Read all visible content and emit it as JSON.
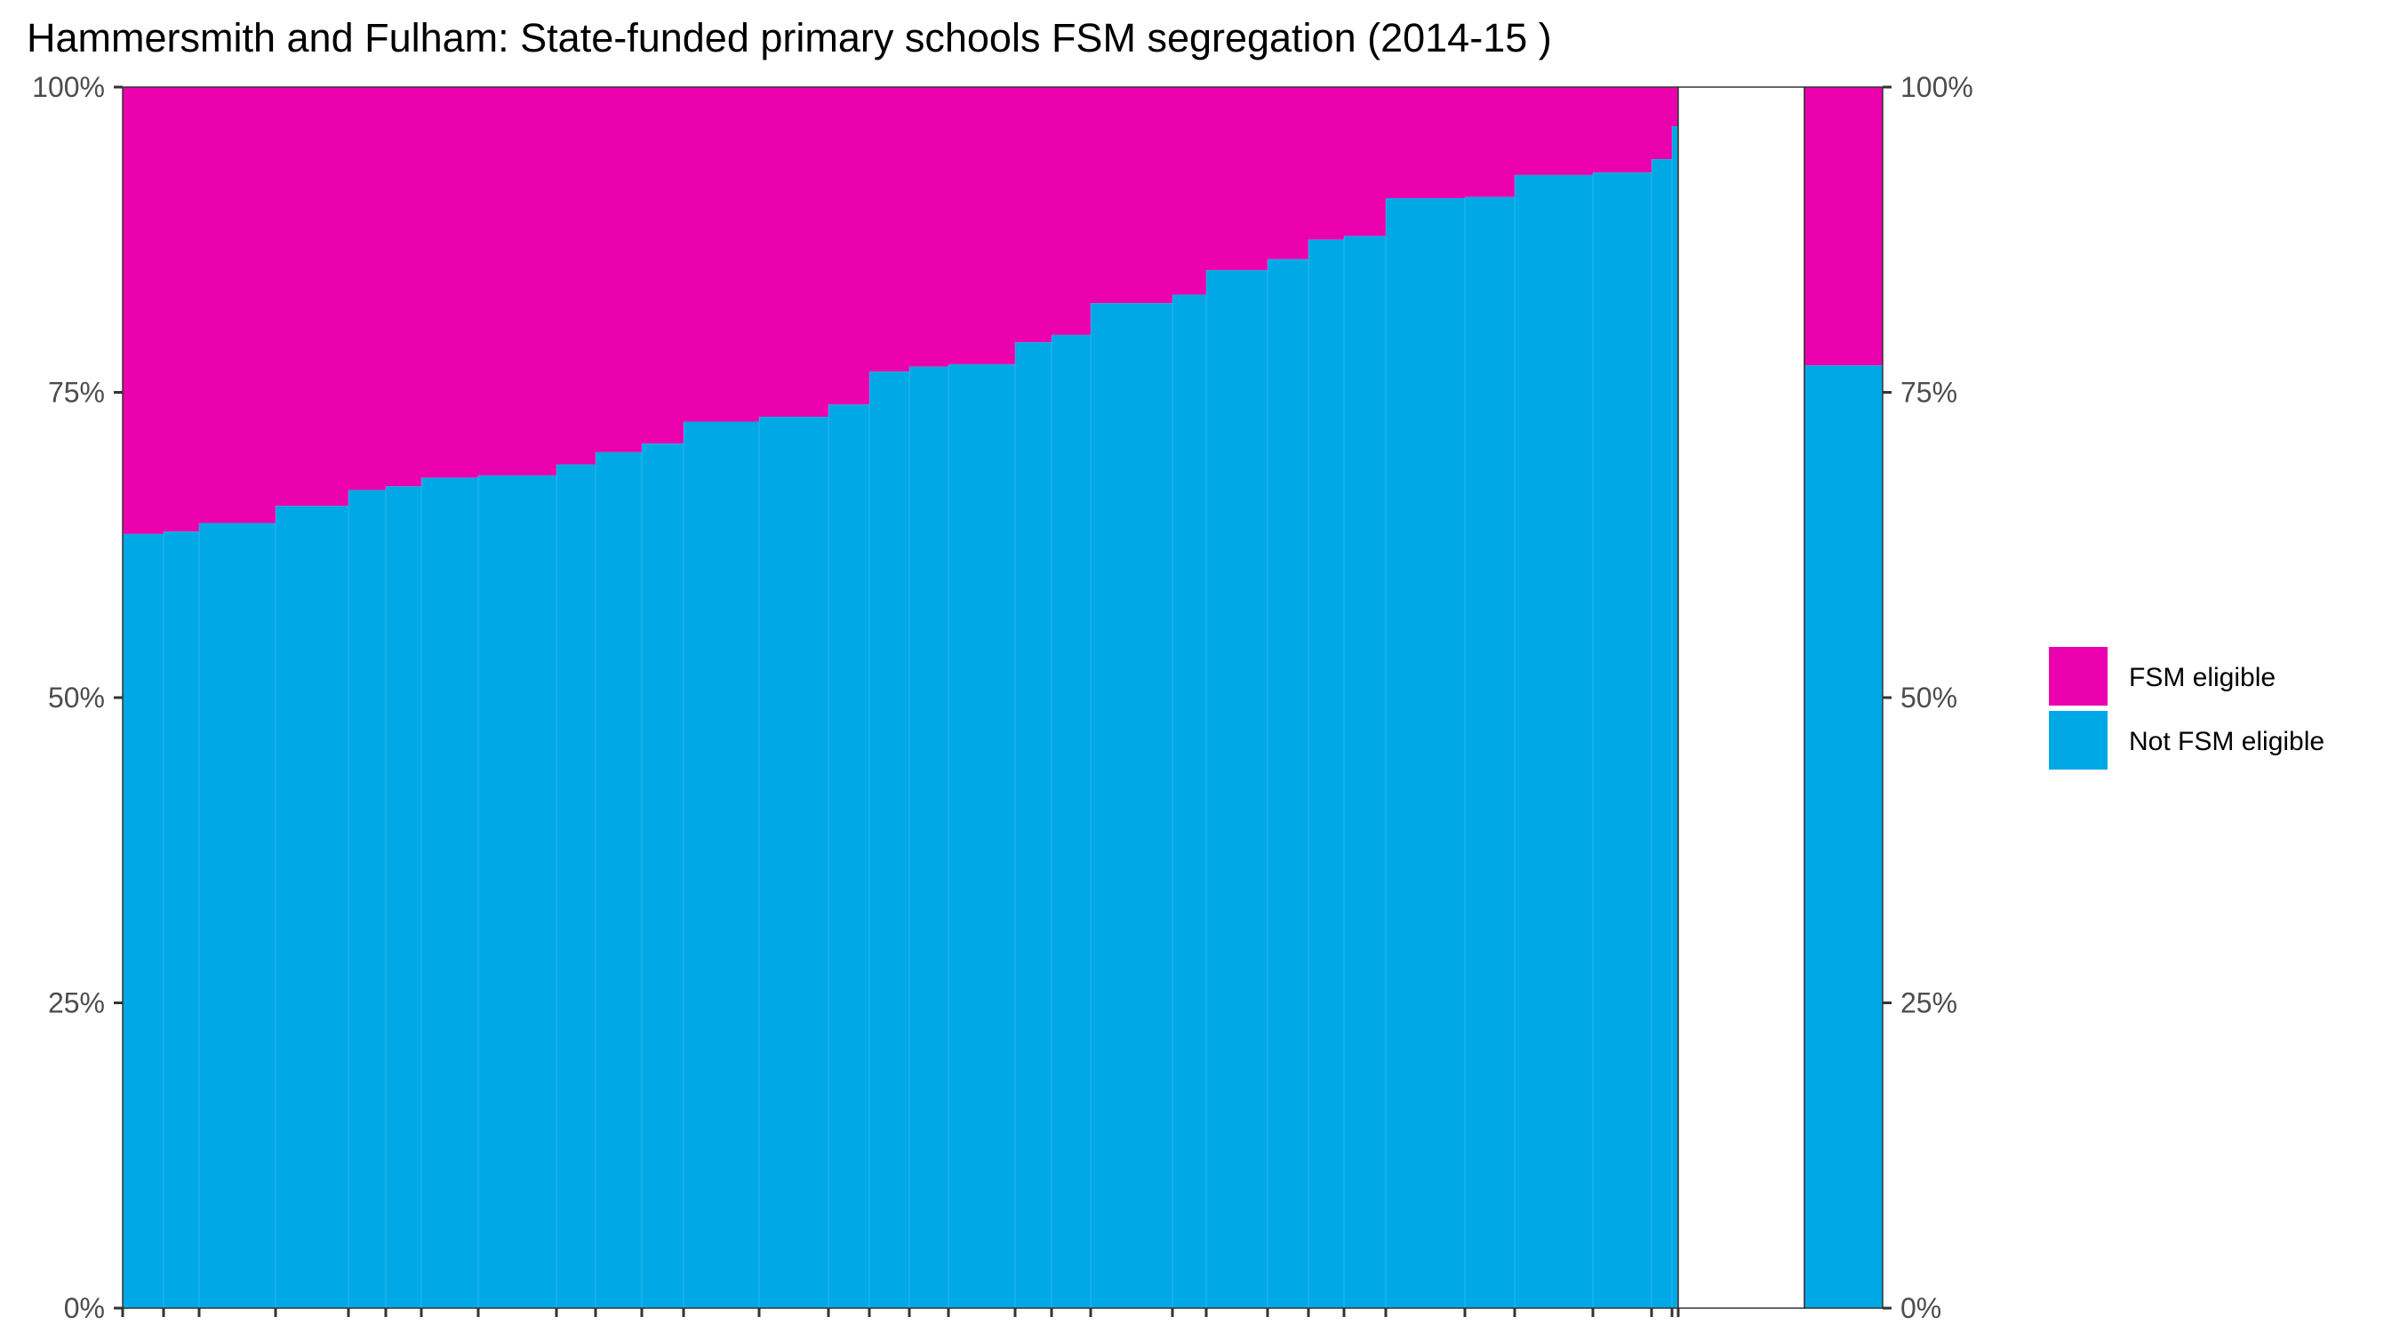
{
  "chart_data": {
    "type": "bar",
    "title": "Hammersmith and Fulham: State-funded primary schools FSM segregation (2014-15 )",
    "xlabel": "",
    "ylabel": "",
    "ylim": [
      0,
      100
    ],
    "yticks": [
      "0%",
      "25%",
      "50%",
      "75%",
      "100%"
    ],
    "grid": false,
    "legend_position": "right",
    "colors": {
      "fsm": "#ea00ad",
      "not_fsm": "#00a8e6"
    },
    "series": [
      {
        "name": "FSM eligible",
        "key": "fsm"
      },
      {
        "name": "Not FSM eligible",
        "key": "not_fsm"
      }
    ],
    "schools_not_fsm_percent": [
      63.4,
      63.6,
      64.3,
      65.7,
      67.0,
      67.3,
      68.0,
      68.2,
      69.1,
      70.1,
      70.8,
      72.6,
      73.0,
      74.0,
      76.7,
      77.1,
      77.3,
      79.1,
      79.7,
      82.3,
      83.0,
      85.0,
      85.9,
      87.5,
      87.8,
      90.9,
      91.0,
      92.8,
      93.0,
      94.1,
      96.8
    ],
    "overall_not_fsm_percent": 77.2
  }
}
